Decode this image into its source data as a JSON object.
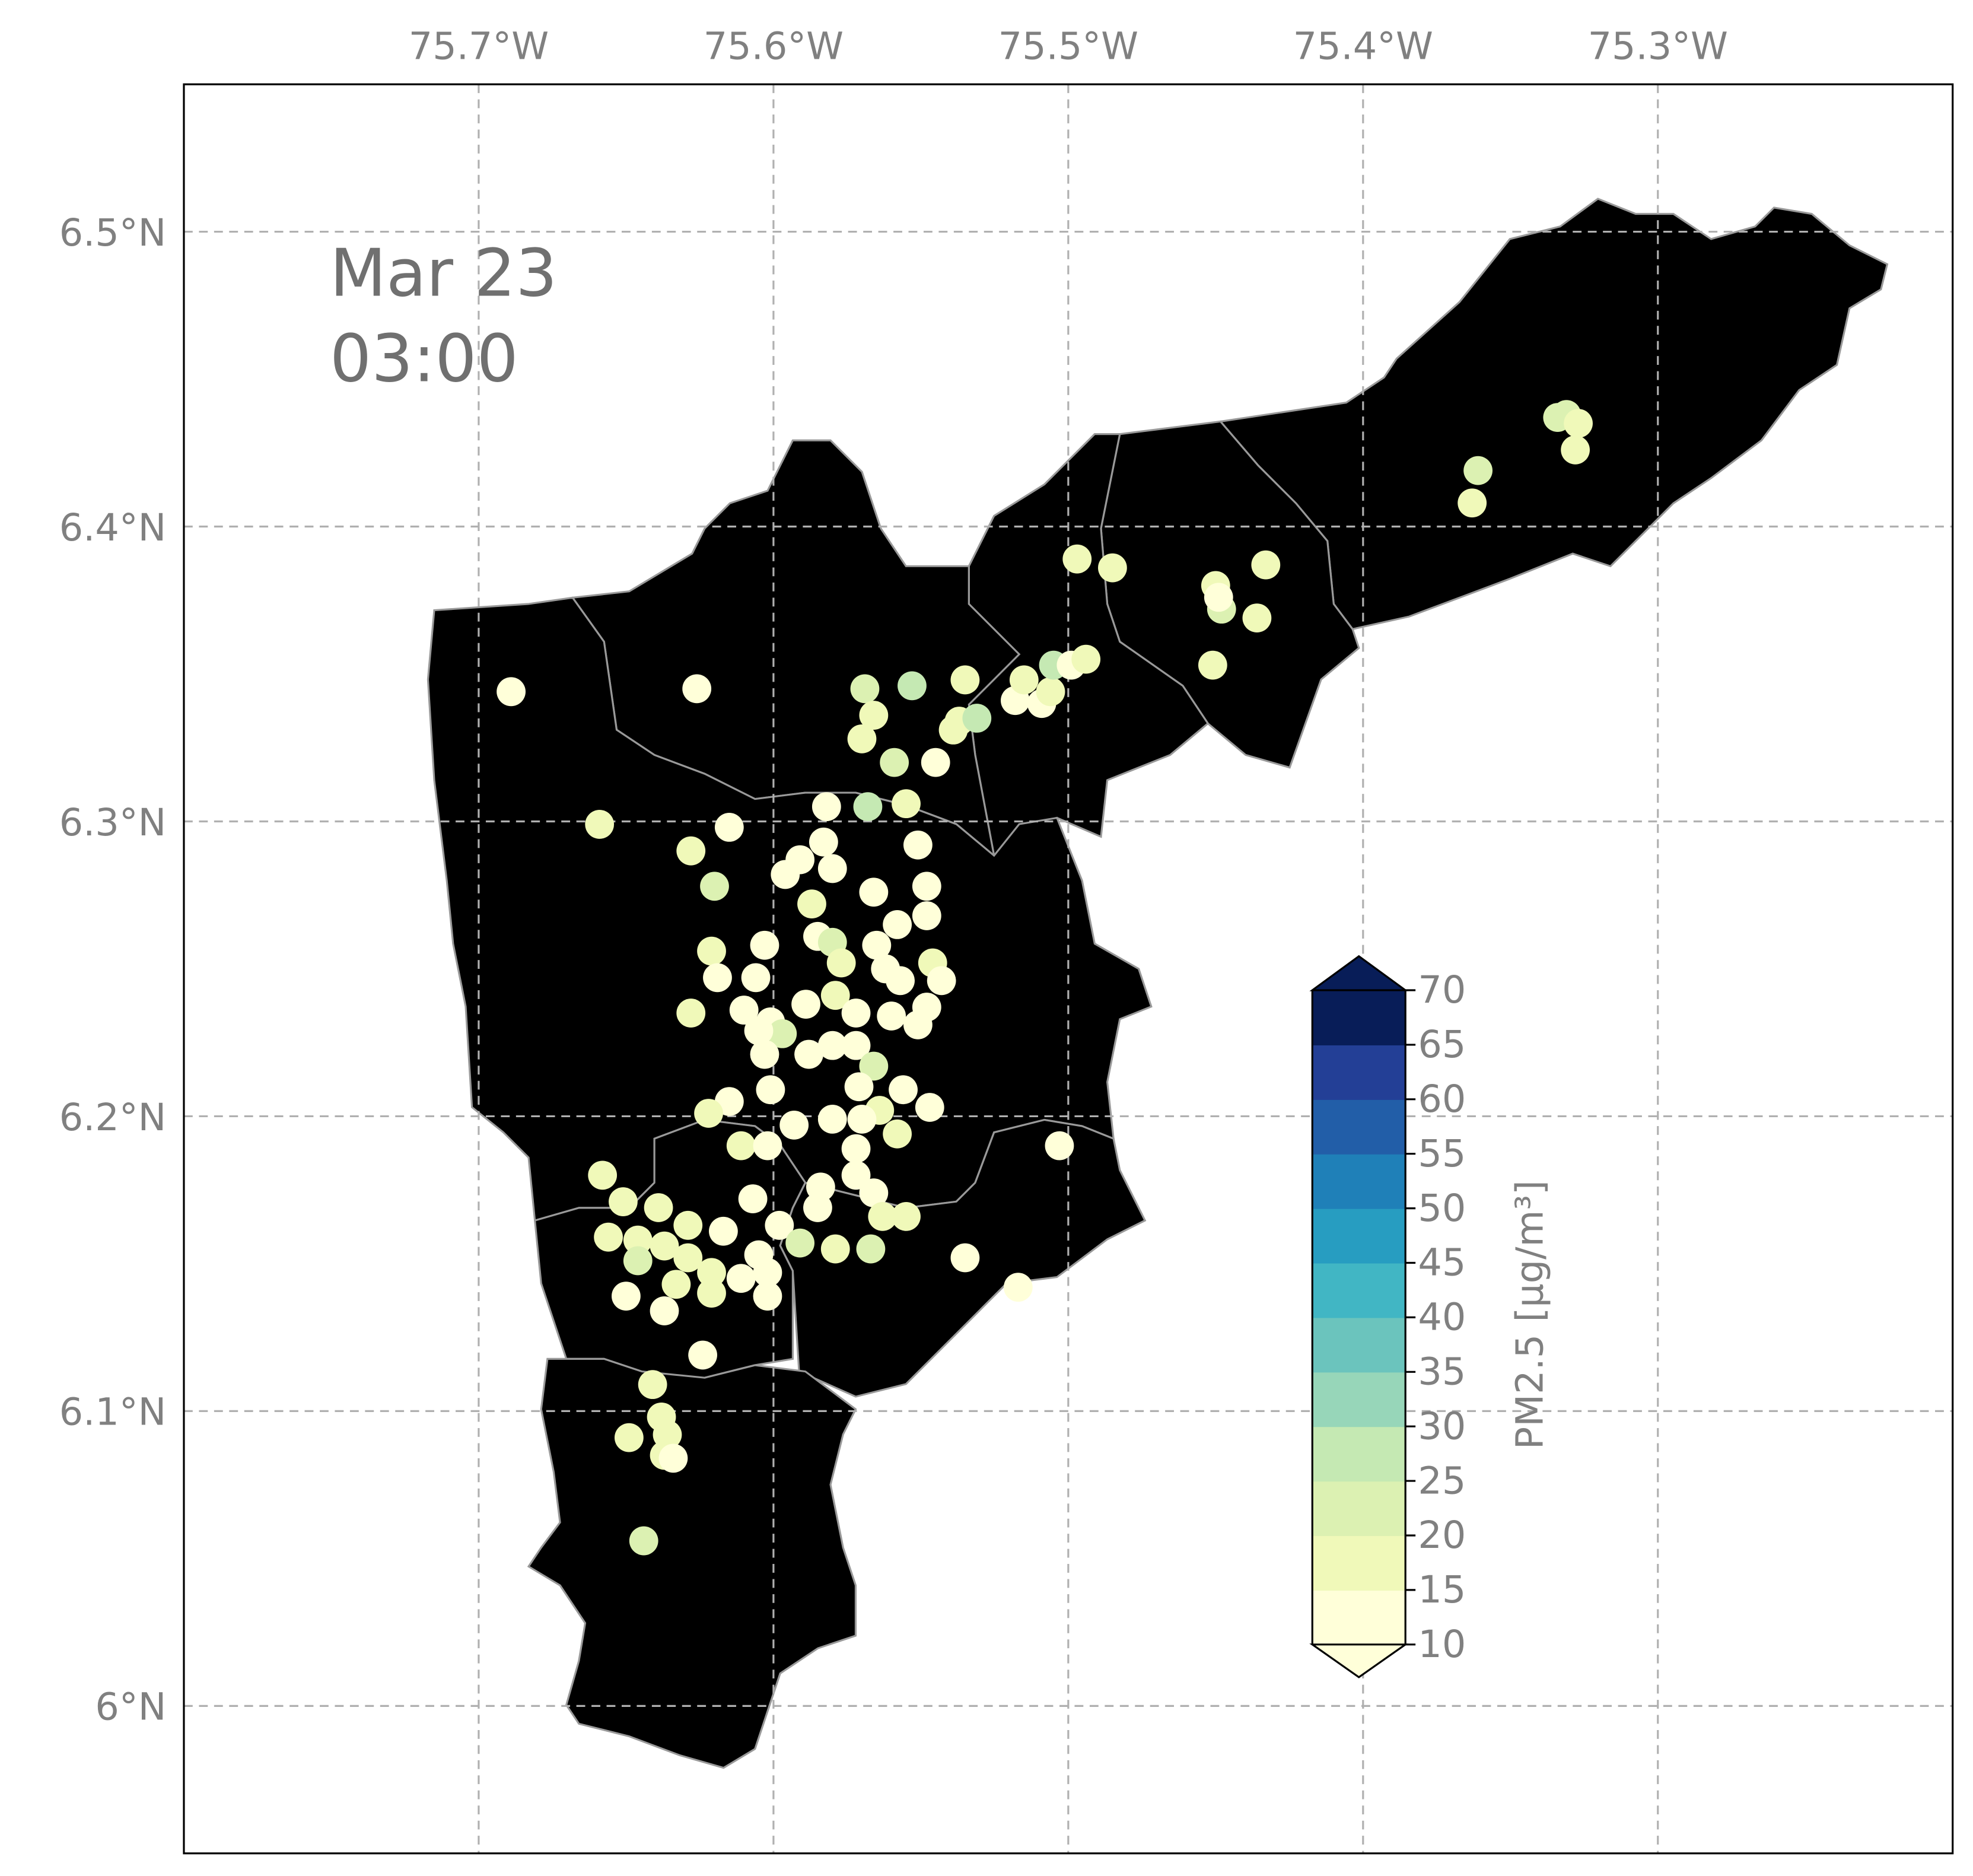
{
  "title": {
    "date": "Mar 23",
    "time": "03:00"
  },
  "map": {
    "lon_ticks": [
      -75.7,
      -75.6,
      -75.5,
      -75.4,
      -75.3
    ],
    "lon_labels": [
      "75.7°W",
      "75.6°W",
      "75.5°W",
      "75.4°W",
      "75.3°W"
    ],
    "lat_ticks": [
      6.5,
      6.4,
      6.3,
      6.2,
      6.1,
      6.0
    ],
    "lat_labels": [
      "6.5°N",
      "6.4°N",
      "6.3°N",
      "6.2°N",
      "6.1°N",
      "6°N"
    ],
    "lon_range": [
      -75.8,
      -75.2
    ],
    "lat_range": [
      5.95,
      6.55
    ],
    "grid": true,
    "region_colors": [
      "#eef1f2",
      "#e6eaeb",
      "#dcdfe0",
      "#cfd2d4",
      "#cacdd0",
      "#eef1f2",
      "#e6e9ea",
      "#d9dcdd"
    ]
  },
  "colorbar": {
    "label": "PM2.5 [μg/m³]",
    "levels": [
      10,
      15,
      20,
      25,
      30,
      35,
      40,
      45,
      50,
      55,
      60,
      65,
      70
    ],
    "tick_labels": [
      "10",
      "15",
      "20",
      "25",
      "30",
      "35",
      "40",
      "45",
      "50",
      "55",
      "60",
      "65",
      "70"
    ],
    "colors": [
      "#ffffd9",
      "#f0f9b9",
      "#dcf1b2",
      "#c5e9b3",
      "#97d6b9",
      "#6bc4bd",
      "#41b6c4",
      "#279dc1",
      "#1f80b8",
      "#225ea8",
      "#233f96",
      "#081d58"
    ],
    "extend": "both",
    "placement": "lower-right"
  },
  "stations": [
    [
      -75.689,
      6.344,
      12
    ],
    [
      -75.626,
      6.345,
      12
    ],
    [
      -75.659,
      6.299,
      17
    ],
    [
      -75.628,
      6.29,
      17
    ],
    [
      -75.62,
      6.278,
      22
    ],
    [
      -75.615,
      6.298,
      12
    ],
    [
      -75.569,
      6.345,
      20
    ],
    [
      -75.553,
      6.346,
      25
    ],
    [
      -75.535,
      6.348,
      15
    ],
    [
      -75.566,
      6.336,
      15
    ],
    [
      -75.57,
      6.328,
      15
    ],
    [
      -75.559,
      6.32,
      22
    ],
    [
      -75.545,
      6.32,
      14
    ],
    [
      -75.568,
      6.305,
      25
    ],
    [
      -75.555,
      6.306,
      15
    ],
    [
      -75.582,
      6.305,
      13
    ],
    [
      -75.551,
      6.292,
      14
    ],
    [
      -75.583,
      6.293,
      13
    ],
    [
      -75.58,
      6.284,
      12
    ],
    [
      -75.591,
      6.287,
      12
    ],
    [
      -75.596,
      6.282,
      12
    ],
    [
      -75.566,
      6.276,
      12
    ],
    [
      -75.548,
      6.278,
      13
    ],
    [
      -75.548,
      6.268,
      13
    ],
    [
      -75.558,
      6.265,
      12
    ],
    [
      -75.587,
      6.272,
      18
    ],
    [
      -75.585,
      6.261,
      12
    ],
    [
      -75.565,
      6.258,
      14
    ],
    [
      -75.58,
      6.259,
      20
    ],
    [
      -75.621,
      6.256,
      15
    ],
    [
      -75.603,
      6.258,
      13
    ],
    [
      -75.619,
      6.247,
      13
    ],
    [
      -75.606,
      6.247,
      12
    ],
    [
      -75.577,
      6.252,
      15
    ],
    [
      -75.562,
      6.25,
      13
    ],
    [
      -75.546,
      6.252,
      15
    ],
    [
      -75.543,
      6.246,
      13
    ],
    [
      -75.557,
      6.246,
      12
    ],
    [
      -75.589,
      6.238,
      12
    ],
    [
      -75.579,
      6.241,
      15
    ],
    [
      -75.572,
      6.235,
      12
    ],
    [
      -75.548,
      6.237,
      12
    ],
    [
      -75.56,
      6.234,
      12
    ],
    [
      -75.551,
      6.231,
      12
    ],
    [
      -75.628,
      6.235,
      15
    ],
    [
      -75.61,
      6.236,
      12
    ],
    [
      -75.601,
      6.232,
      13
    ],
    [
      -75.597,
      6.228,
      22
    ],
    [
      -75.605,
      6.229,
      12
    ],
    [
      -75.603,
      6.221,
      12
    ],
    [
      -75.588,
      6.221,
      12
    ],
    [
      -75.58,
      6.224,
      12
    ],
    [
      -75.572,
      6.224,
      12
    ],
    [
      -75.566,
      6.217,
      22
    ],
    [
      -75.601,
      6.209,
      12
    ],
    [
      -75.571,
      6.21,
      12
    ],
    [
      -75.556,
      6.209,
      13
    ],
    [
      -75.547,
      6.203,
      13
    ],
    [
      -75.564,
      6.202,
      18
    ],
    [
      -75.615,
      6.205,
      12
    ],
    [
      -75.622,
      6.201,
      17
    ],
    [
      -75.58,
      6.199,
      12
    ],
    [
      -75.57,
      6.199,
      12
    ],
    [
      -75.593,
      6.197,
      12
    ],
    [
      -75.558,
      6.194,
      15
    ],
    [
      -75.611,
      6.19,
      17
    ],
    [
      -75.602,
      6.19,
      12
    ],
    [
      -75.572,
      6.189,
      12
    ],
    [
      -75.503,
      6.19,
      12
    ],
    [
      -75.658,
      6.18,
      17
    ],
    [
      -75.572,
      6.18,
      12
    ],
    [
      -75.584,
      6.176,
      13
    ],
    [
      -75.566,
      6.174,
      12
    ],
    [
      -75.607,
      6.172,
      12
    ],
    [
      -75.585,
      6.169,
      12
    ],
    [
      -75.598,
      6.163,
      12
    ],
    [
      -75.651,
      6.171,
      16
    ],
    [
      -75.639,
      6.169,
      15
    ],
    [
      -75.629,
      6.163,
      16
    ],
    [
      -75.617,
      6.161,
      12
    ],
    [
      -75.563,
      6.166,
      16
    ],
    [
      -75.555,
      6.166,
      16
    ],
    [
      -75.656,
      6.159,
      17
    ],
    [
      -75.646,
      6.158,
      18
    ],
    [
      -75.637,
      6.156,
      17
    ],
    [
      -75.629,
      6.152,
      15
    ],
    [
      -75.591,
      6.157,
      20
    ],
    [
      -75.579,
      6.155,
      15
    ],
    [
      -75.567,
      6.155,
      20
    ],
    [
      -75.605,
      6.153,
      12
    ],
    [
      -75.602,
      6.147,
      12
    ],
    [
      -75.621,
      6.147,
      15
    ],
    [
      -75.611,
      6.145,
      12
    ],
    [
      -75.646,
      6.151,
      20
    ],
    [
      -75.633,
      6.143,
      16
    ],
    [
      -75.621,
      6.14,
      16
    ],
    [
      -75.637,
      6.134,
      12
    ],
    [
      -75.65,
      6.139,
      12
    ],
    [
      -75.602,
      6.139,
      12
    ],
    [
      -75.535,
      6.152,
      12
    ],
    [
      -75.517,
      6.142,
      12
    ],
    [
      -75.624,
      6.119,
      12
    ],
    [
      -75.641,
      6.109,
      17
    ],
    [
      -75.638,
      6.098,
      16
    ],
    [
      -75.636,
      6.092,
      16
    ],
    [
      -75.649,
      6.091,
      16
    ],
    [
      -75.637,
      6.085,
      15
    ],
    [
      -75.634,
      6.084,
      12
    ],
    [
      -75.644,
      6.056,
      20
    ],
    [
      -75.539,
      6.331,
      15
    ],
    [
      -75.537,
      6.334,
      17
    ],
    [
      -75.531,
      6.335,
      25
    ],
    [
      -75.518,
      6.341,
      13
    ],
    [
      -75.509,
      6.34,
      13
    ],
    [
      -75.515,
      6.348,
      17
    ],
    [
      -75.506,
      6.344,
      17
    ],
    [
      -75.505,
      6.353,
      25
    ],
    [
      -75.499,
      6.353,
      13
    ],
    [
      -75.494,
      6.355,
      15
    ],
    [
      -75.497,
      6.389,
      15
    ],
    [
      -75.485,
      6.386,
      15
    ],
    [
      -75.45,
      6.38,
      17
    ],
    [
      -75.448,
      6.372,
      20
    ],
    [
      -75.449,
      6.376,
      12
    ],
    [
      -75.451,
      6.353,
      17
    ],
    [
      -75.436,
      6.369,
      18
    ],
    [
      -75.433,
      6.387,
      17
    ],
    [
      -75.361,
      6.419,
      22
    ],
    [
      -75.363,
      6.408,
      17
    ],
    [
      -75.331,
      6.438,
      22
    ],
    [
      -75.334,
      6.437,
      20
    ],
    [
      -75.328,
      6.426,
      17
    ],
    [
      -75.327,
      6.435,
      17
    ]
  ]
}
